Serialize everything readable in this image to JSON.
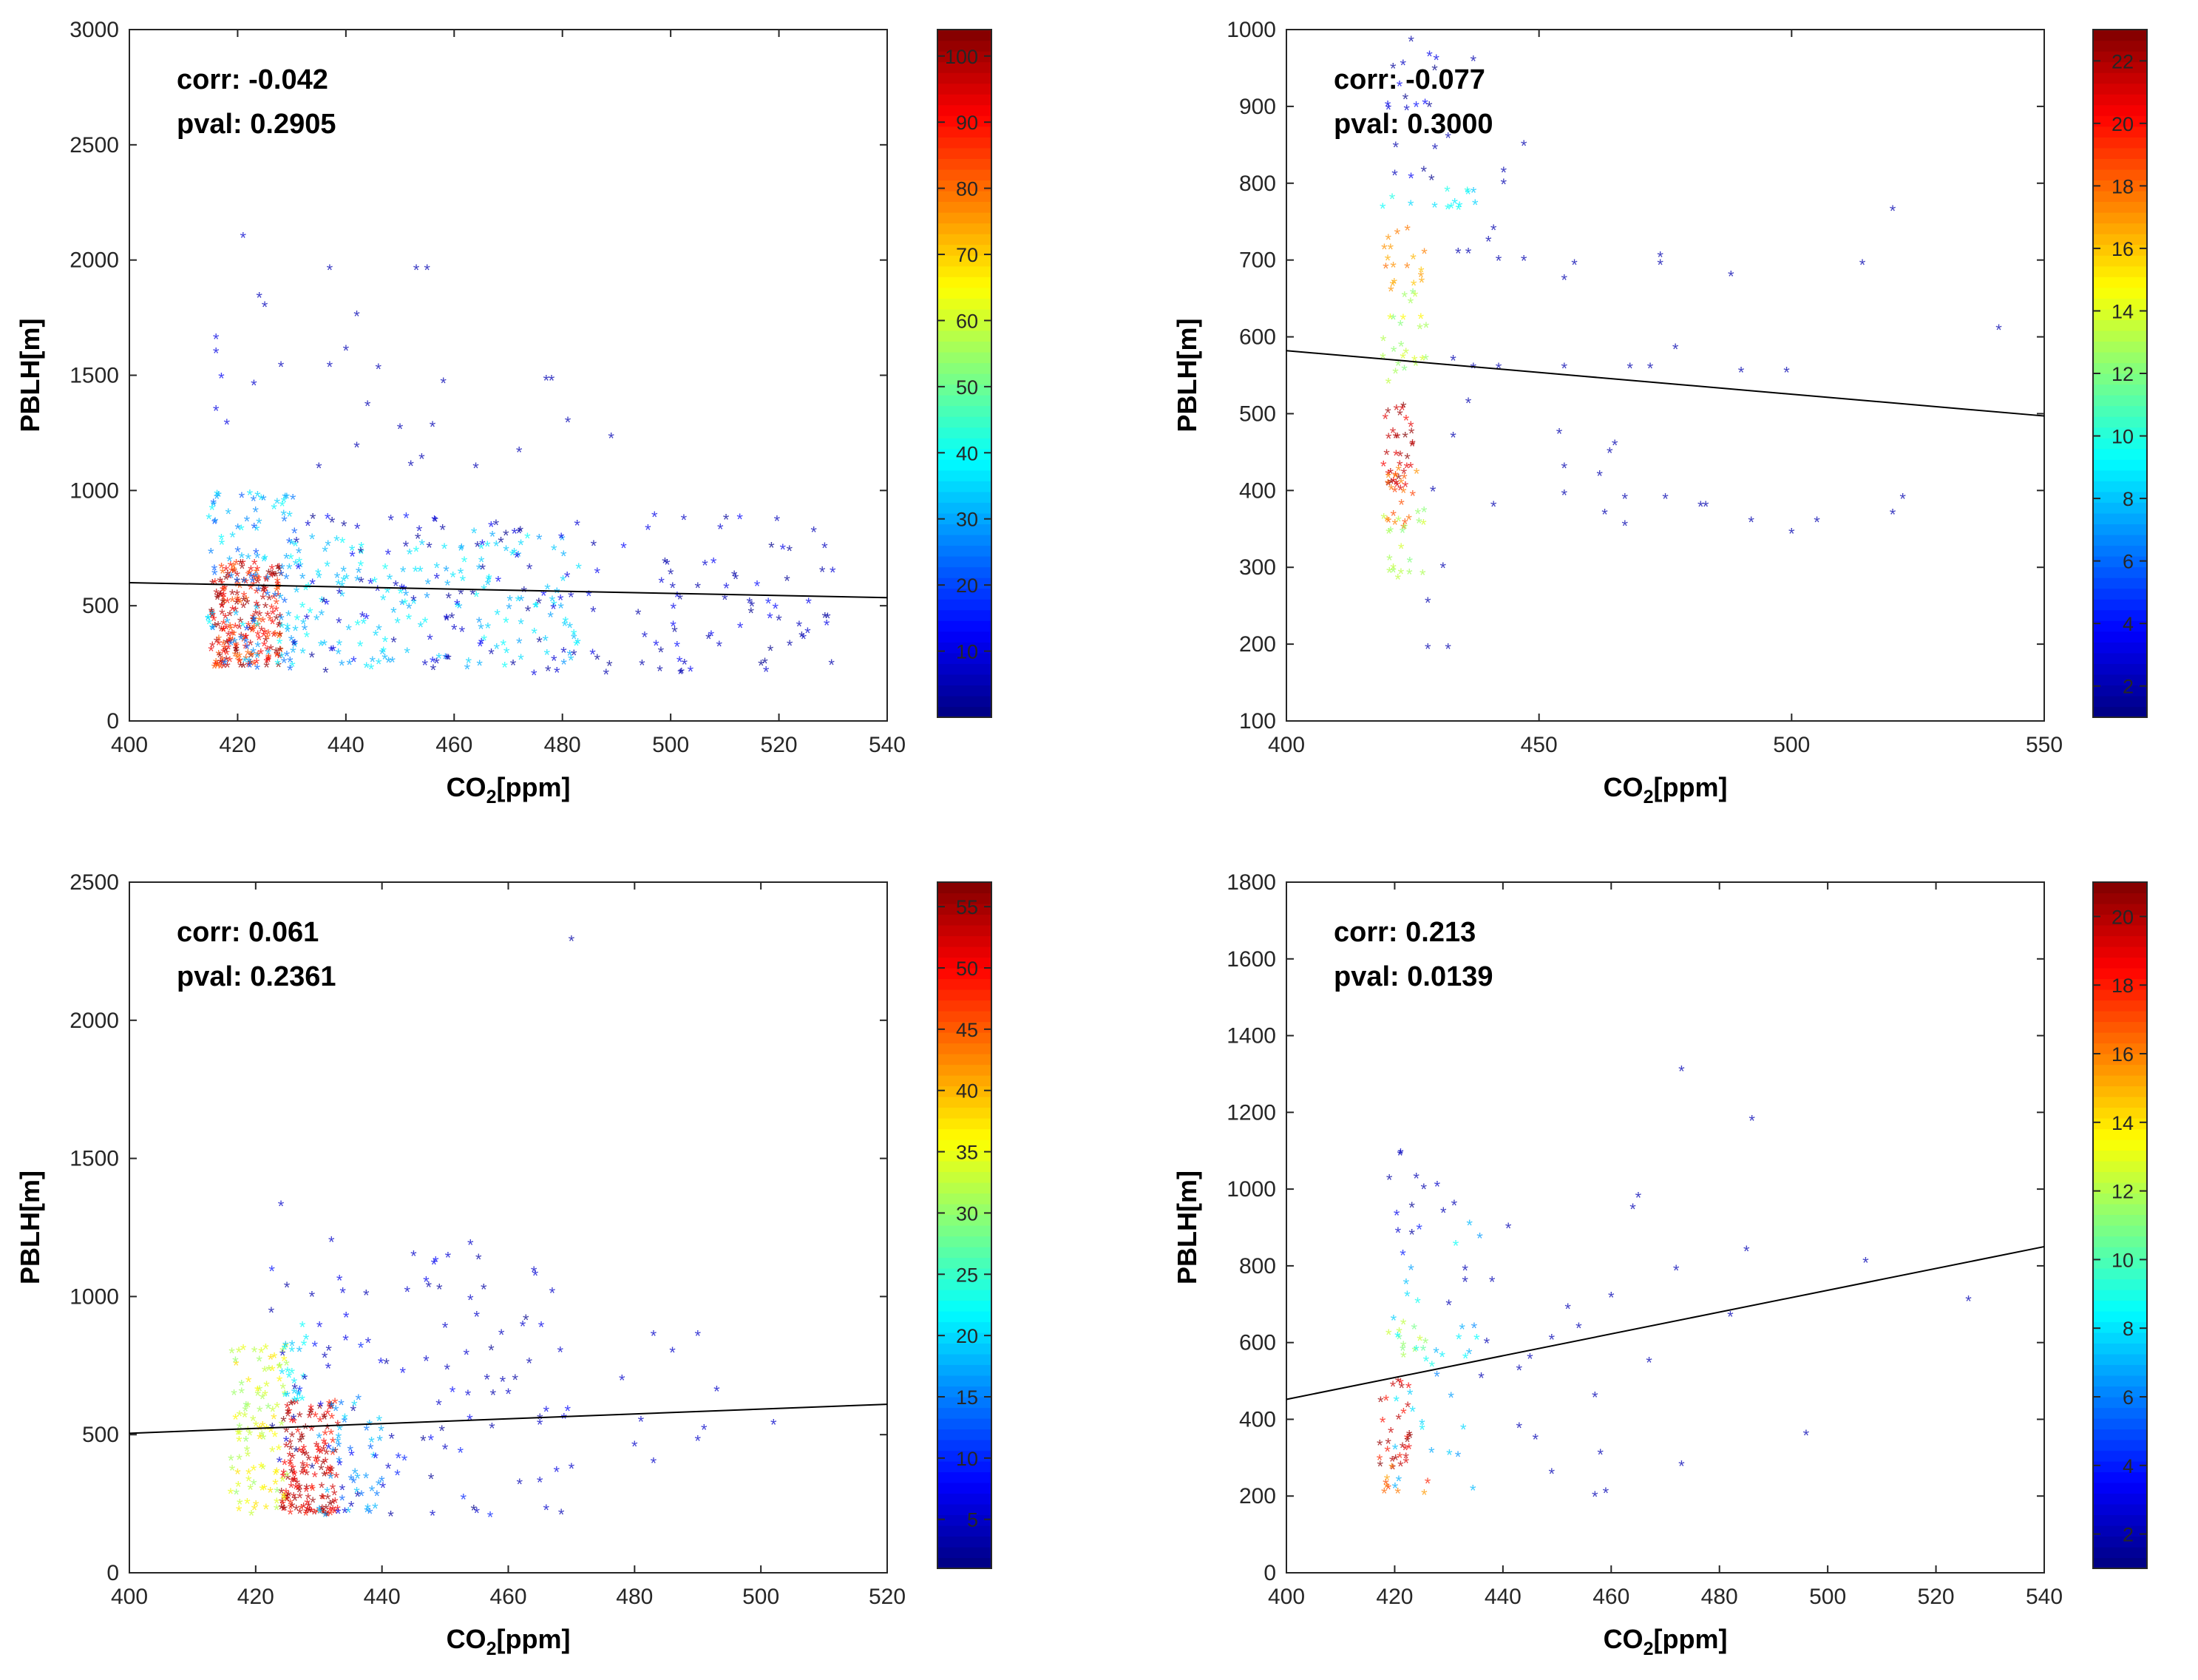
{
  "chart_data": [
    {
      "type": "scatter",
      "xlabel": "CO",
      "xlabel_sub": "2",
      "xlabel_suffix": "[ppm]",
      "ylabel": "PBLH[m]",
      "xlim": [
        400,
        540
      ],
      "ylim": [
        0,
        3000
      ],
      "xticks": [
        400,
        420,
        440,
        460,
        480,
        500,
        520,
        540
      ],
      "yticks": [
        0,
        500,
        1000,
        1500,
        2000,
        2500,
        3000
      ],
      "corr_text": "corr: -0.042",
      "pval_text": "pval: 0.2905",
      "colorbar": {
        "min": 0,
        "max": 104,
        "ticks": [
          10,
          20,
          30,
          40,
          50,
          60,
          70,
          80,
          90,
          100
        ]
      },
      "fit_line": [
        [
          400,
          600
        ],
        [
          540,
          535
        ]
      ],
      "clusters": [
        {
          "x": [
            415,
            428
          ],
          "y": [
            230,
            690
          ],
          "c": [
            80,
            104
          ],
          "n": 230
        },
        {
          "x": [
            414,
            431
          ],
          "y": [
            220,
            1000
          ],
          "c": [
            20,
            40
          ],
          "n": 110
        },
        {
          "x": [
            428,
            485
          ],
          "y": [
            220,
            820
          ],
          "c": [
            28,
            40
          ],
          "n": 170
        },
        {
          "x": [
            430,
            530
          ],
          "y": [
            200,
            900
          ],
          "c": [
            1,
            15
          ],
          "n": 160
        }
      ],
      "points": [
        [
          421,
          2100,
          8
        ],
        [
          424,
          1840,
          6
        ],
        [
          425,
          1800,
          6
        ],
        [
          437,
          1960,
          5
        ],
        [
          453,
          1960,
          5
        ],
        [
          455,
          1960,
          5
        ],
        [
          442,
          1760,
          5
        ],
        [
          437,
          1540,
          6
        ],
        [
          440,
          1610,
          5
        ],
        [
          416,
          1660,
          10
        ],
        [
          416,
          1600,
          10
        ],
        [
          417,
          1490,
          12
        ],
        [
          423,
          1460,
          8
        ],
        [
          428,
          1540,
          6
        ],
        [
          446,
          1530,
          5
        ],
        [
          458,
          1470,
          5
        ],
        [
          477,
          1480,
          5
        ],
        [
          478,
          1480,
          5
        ],
        [
          444,
          1370,
          5
        ],
        [
          450,
          1270,
          5
        ],
        [
          456,
          1280,
          5
        ],
        [
          481,
          1300,
          5
        ],
        [
          489,
          1230,
          5
        ],
        [
          472,
          1170,
          5
        ],
        [
          464,
          1100,
          5
        ],
        [
          454,
          1140,
          5
        ],
        [
          452,
          1110,
          5
        ],
        [
          442,
          1190,
          5
        ],
        [
          435,
          1100,
          5
        ],
        [
          418,
          1290,
          10
        ],
        [
          416,
          1350,
          10
        ],
        [
          500,
          640,
          4
        ],
        [
          505,
          580,
          4
        ],
        [
          510,
          530,
          4
        ],
        [
          515,
          500,
          4
        ],
        [
          520,
          440,
          4
        ],
        [
          522,
          330,
          4
        ],
        [
          528,
          650,
          4
        ],
        [
          529,
          450,
          4
        ],
        [
          512,
          620,
          4
        ],
        [
          507,
          360,
          4
        ],
        [
          502,
          210,
          4
        ],
        [
          498,
          220,
          4
        ]
      ]
    },
    {
      "type": "scatter",
      "xlabel": "CO",
      "xlabel_sub": "2",
      "xlabel_suffix": "[ppm]",
      "ylabel": "PBLH[m]",
      "xlim": [
        400,
        550
      ],
      "ylim": [
        100,
        1000
      ],
      "xticks": [
        400,
        450,
        500,
        550
      ],
      "yticks": [
        100,
        200,
        300,
        400,
        500,
        600,
        700,
        800,
        900,
        1000
      ],
      "corr_text": "corr: -0.077",
      "pval_text": "pval: 0.3000",
      "colorbar": {
        "min": 1,
        "max": 23,
        "ticks": [
          2,
          4,
          6,
          8,
          10,
          12,
          14,
          16,
          18,
          20,
          22
        ]
      },
      "fit_line": [
        [
          400,
          582
        ],
        [
          550,
          497
        ]
      ],
      "clusters": [
        {
          "x": [
            419,
            425
          ],
          "y": [
            400,
            510
          ],
          "c": [
            20,
            23
          ],
          "n": 35
        },
        {
          "x": [
            419,
            426
          ],
          "y": [
            350,
            430
          ],
          "c": [
            17,
            19
          ],
          "n": 20
        },
        {
          "x": [
            419,
            428
          ],
          "y": [
            280,
            380
          ],
          "c": [
            12,
            14
          ],
          "n": 20
        },
        {
          "x": [
            419,
            428
          ],
          "y": [
            540,
            660
          ],
          "c": [
            12,
            15
          ],
          "n": 25
        },
        {
          "x": [
            419,
            428
          ],
          "y": [
            660,
            740
          ],
          "c": [
            16,
            18
          ],
          "n": 18
        },
        {
          "x": [
            419,
            438
          ],
          "y": [
            760,
            800
          ],
          "c": [
            8,
            10
          ],
          "n": 14
        },
        {
          "x": [
            420,
            430
          ],
          "y": [
            800,
            990
          ],
          "c": [
            1,
            4
          ],
          "n": 20
        }
      ],
      "points": [
        [
          437,
          960,
          2
        ],
        [
          447,
          850,
          2
        ],
        [
          443,
          815,
          2
        ],
        [
          432,
          860,
          2
        ],
        [
          443,
          800,
          2
        ],
        [
          441,
          740,
          2
        ],
        [
          440,
          725,
          2
        ],
        [
          442,
          700,
          2
        ],
        [
          434,
          710,
          2
        ],
        [
          436,
          710,
          2
        ],
        [
          447,
          700,
          2
        ],
        [
          457,
          695,
          2
        ],
        [
          455,
          675,
          2
        ],
        [
          474,
          705,
          2
        ],
        [
          474,
          695,
          2
        ],
        [
          488,
          680,
          2
        ],
        [
          477,
          585,
          2
        ],
        [
          468,
          560,
          2
        ],
        [
          472,
          560,
          2
        ],
        [
          490,
          555,
          2
        ],
        [
          499,
          555,
          2
        ],
        [
          455,
          560,
          2
        ],
        [
          442,
          560,
          2
        ],
        [
          437,
          560,
          2
        ],
        [
          433,
          570,
          2
        ],
        [
          436,
          515,
          2
        ],
        [
          454,
          475,
          2
        ],
        [
          455,
          430,
          2
        ],
        [
          465,
          460,
          2
        ],
        [
          464,
          450,
          2
        ],
        [
          462,
          420,
          2
        ],
        [
          455,
          395,
          2
        ],
        [
          467,
          390,
          2
        ],
        [
          475,
          390,
          2
        ],
        [
          482,
          380,
          2
        ],
        [
          483,
          380,
          2
        ],
        [
          463,
          370,
          2
        ],
        [
          467,
          355,
          2
        ],
        [
          492,
          360,
          2
        ],
        [
          500,
          345,
          2
        ],
        [
          505,
          360,
          2
        ],
        [
          520,
          370,
          2
        ],
        [
          522,
          390,
          2
        ],
        [
          514,
          695,
          2
        ],
        [
          520,
          765,
          2
        ],
        [
          541,
          610,
          2
        ],
        [
          441,
          380,
          2
        ],
        [
          433,
          470,
          2
        ],
        [
          429,
          400,
          2
        ],
        [
          431,
          300,
          2
        ],
        [
          428,
          195,
          2
        ],
        [
          432,
          195,
          2
        ],
        [
          428,
          255,
          2
        ]
      ]
    },
    {
      "type": "scatter",
      "xlabel": "CO",
      "xlabel_sub": "2",
      "xlabel_suffix": "[ppm]",
      "ylabel": "PBLH[m]",
      "xlim": [
        400,
        520
      ],
      "ylim": [
        0,
        2500
      ],
      "xticks": [
        400,
        420,
        440,
        460,
        480,
        500,
        520
      ],
      "yticks": [
        0,
        500,
        1000,
        1500,
        2000,
        2500
      ],
      "corr_text": "corr: 0.061",
      "pval_text": "pval: 0.2361",
      "colorbar": {
        "min": 1,
        "max": 57,
        "ticks": [
          5,
          10,
          15,
          20,
          25,
          30,
          35,
          40,
          45,
          50,
          55
        ]
      },
      "fit_line": [
        [
          400,
          505
        ],
        [
          520,
          610
        ]
      ],
      "clusters": [
        {
          "x": [
            424,
            433
          ],
          "y": [
            200,
            620
          ],
          "c": [
            48,
            57
          ],
          "n": 160
        },
        {
          "x": [
            416,
            425
          ],
          "y": [
            200,
            820
          ],
          "c": [
            30,
            38
          ],
          "n": 100
        },
        {
          "x": [
            424,
            428
          ],
          "y": [
            600,
            900
          ],
          "c": [
            18,
            23
          ],
          "n": 22
        },
        {
          "x": [
            430,
            440
          ],
          "y": [
            200,
            650
          ],
          "c": [
            13,
            20
          ],
          "n": 45
        },
        {
          "x": [
            422,
            470
          ],
          "y": [
            200,
            1150
          ],
          "c": [
            1,
            10
          ],
          "n": 90
        }
      ],
      "points": [
        [
          470,
          2290,
          3
        ],
        [
          424,
          1330,
          5
        ],
        [
          432,
          1200,
          5
        ],
        [
          454,
          1190,
          5
        ],
        [
          445,
          1150,
          5
        ],
        [
          454,
          990,
          5
        ],
        [
          455,
          930,
          5
        ],
        [
          444,
          1020,
          5
        ],
        [
          450,
          890,
          5
        ],
        [
          447,
          770,
          5
        ],
        [
          449,
          610,
          5
        ],
        [
          483,
          860,
          5
        ],
        [
          490,
          860,
          5
        ],
        [
          486,
          800,
          5
        ],
        [
          478,
          700,
          5
        ],
        [
          493,
          660,
          5
        ],
        [
          502,
          540,
          5
        ],
        [
          481,
          550,
          5
        ],
        [
          490,
          480,
          5
        ],
        [
          483,
          400,
          5
        ],
        [
          480,
          460,
          5
        ],
        [
          470,
          380,
          5
        ],
        [
          465,
          540,
          5
        ],
        [
          460,
          650,
          5
        ],
        [
          465,
          330,
          5
        ],
        [
          466,
          230,
          5
        ],
        [
          455,
          220,
          5
        ],
        [
          448,
          210,
          5
        ],
        [
          441,
          380,
          5
        ],
        [
          491,
          520,
          5
        ]
      ]
    },
    {
      "type": "scatter",
      "xlabel": "CO",
      "xlabel_sub": "2",
      "xlabel_suffix": "[ppm]",
      "ylabel": "PBLH[m]",
      "xlim": [
        400,
        540
      ],
      "ylim": [
        0,
        1800
      ],
      "xticks": [
        400,
        420,
        440,
        460,
        480,
        500,
        520,
        540
      ],
      "yticks": [
        0,
        200,
        400,
        600,
        800,
        1000,
        1200,
        1400,
        1600,
        1800
      ],
      "corr_text": "corr: 0.213",
      "pval_text": "pval: 0.0139",
      "colorbar": {
        "min": 1,
        "max": 21,
        "ticks": [
          2,
          4,
          6,
          8,
          10,
          12,
          14,
          16,
          18,
          20
        ]
      },
      "fit_line": [
        [
          400,
          452
        ],
        [
          540,
          850
        ]
      ],
      "clusters": [
        {
          "x": [
            417,
            423
          ],
          "y": [
            270,
            500
          ],
          "c": [
            18,
            21
          ],
          "n": 30
        },
        {
          "x": [
            417,
            427
          ],
          "y": [
            200,
            300
          ],
          "c": [
            15,
            18
          ],
          "n": 10
        },
        {
          "x": [
            418,
            426
          ],
          "y": [
            560,
            660
          ],
          "c": [
            10,
            13
          ],
          "n": 12
        },
        {
          "x": [
            419,
            436
          ],
          "y": [
            200,
            920
          ],
          "c": [
            6,
            9
          ],
          "n": 35
        },
        {
          "x": [
            418,
            428
          ],
          "y": [
            820,
            1100
          ],
          "c": [
            1,
            4
          ],
          "n": 10
        }
      ],
      "points": [
        [
          473,
          1310,
          2
        ],
        [
          486,
          1180,
          2
        ],
        [
          431,
          960,
          2
        ],
        [
          429,
          940,
          2
        ],
        [
          424,
          1030,
          2
        ],
        [
          421,
          1090,
          2
        ],
        [
          441,
          900,
          2
        ],
        [
          464,
          950,
          2
        ],
        [
          465,
          980,
          2
        ],
        [
          485,
          840,
          2
        ],
        [
          472,
          790,
          2
        ],
        [
          507,
          810,
          2
        ],
        [
          526,
          710,
          2
        ],
        [
          482,
          670,
          2
        ],
        [
          460,
          720,
          2
        ],
        [
          454,
          640,
          2
        ],
        [
          452,
          690,
          2
        ],
        [
          449,
          610,
          2
        ],
        [
          443,
          530,
          2
        ],
        [
          445,
          560,
          2
        ],
        [
          457,
          460,
          2
        ],
        [
          467,
          550,
          2
        ],
        [
          446,
          350,
          2
        ],
        [
          449,
          260,
          2
        ],
        [
          458,
          310,
          2
        ],
        [
          457,
          200,
          2
        ],
        [
          459,
          210,
          2
        ],
        [
          473,
          280,
          2
        ],
        [
          496,
          360,
          2
        ],
        [
          443,
          380,
          2
        ],
        [
          438,
          760,
          2
        ],
        [
          433,
          790,
          2
        ],
        [
          433,
          760,
          2
        ],
        [
          430,
          700,
          2
        ],
        [
          437,
          600,
          2
        ],
        [
          436,
          510,
          2
        ]
      ]
    }
  ]
}
